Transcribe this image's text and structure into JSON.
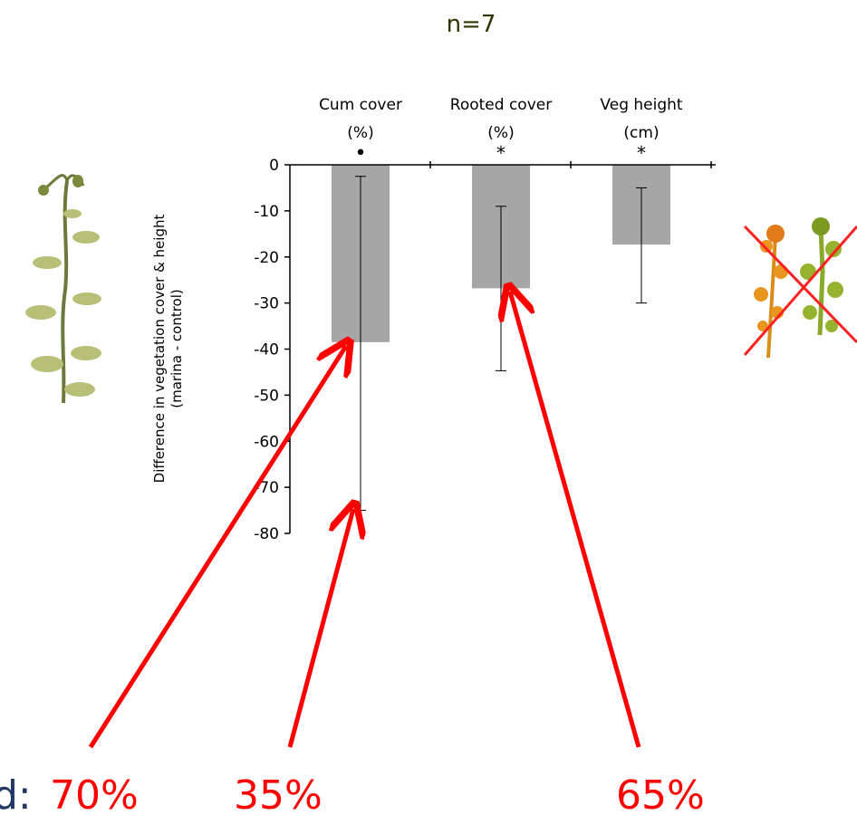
{
  "sample_size": "n=7",
  "chart_data": {
    "type": "bar",
    "categories": [
      {
        "line1": "Cum cover",
        "line2": "(%)",
        "marker": "•"
      },
      {
        "line1": "Rooted cover",
        "line2": "(%)",
        "marker": "*"
      },
      {
        "line1": "Veg height",
        "line2": "(cm)",
        "marker": "*"
      }
    ],
    "values": [
      -38.5,
      -26.8,
      -17.3
    ],
    "error_upper": [
      -2.5,
      -9.0,
      -5.0
    ],
    "error_lower": [
      -75.0,
      -44.7,
      -30.0
    ],
    "ylabel_line1": "Difference in vegetation cover & height",
    "ylabel_line2": "(marina - control)",
    "ylim": [
      -80,
      0
    ],
    "y_ticks": [
      0,
      -10,
      -20,
      -30,
      -40,
      -50,
      -60,
      -70,
      -80
    ],
    "bar_color": "#a6a6a6",
    "grid": false
  },
  "annotations": {
    "prefix": "d:",
    "prefix_color": "#1f3864",
    "color": "#ff0000",
    "labels": [
      {
        "text": "70%",
        "points_to": "Cum cover bar mean"
      },
      {
        "text": "35%",
        "points_to": "Cum cover lower error bar"
      },
      {
        "text": "65%",
        "points_to": "Rooted cover bar mean"
      }
    ]
  },
  "images": {
    "left_plant": "climbing-vine-plant",
    "right_plants": "crossed-out-plants"
  }
}
